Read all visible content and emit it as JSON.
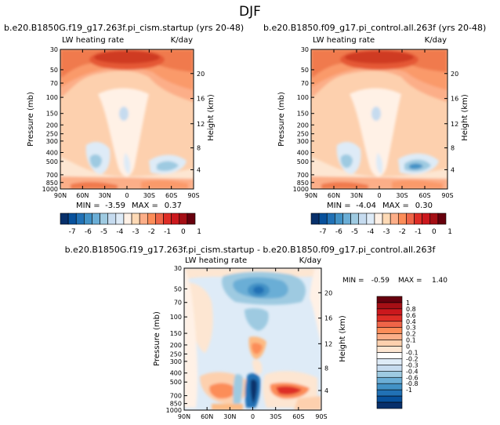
{
  "page_title": "DJF",
  "chart_data": [
    {
      "type": "heatmap",
      "title": "b.e20.B1850G.f19_g17.263f.pi_cism.startup (yrs 20-48)",
      "subtitle_left": "LW heating rate",
      "subtitle_right": "K/day",
      "ylabel": "Pressure (mb)",
      "ylabel_right": "Height (km)",
      "x_ticks": [
        "90N",
        "60N",
        "30N",
        "0",
        "30S",
        "60S",
        "90S"
      ],
      "y_ticks": [
        "30",
        "50",
        "70",
        "100",
        "150",
        "200",
        "250",
        "300",
        "400",
        "500",
        "700",
        "850",
        "1000"
      ],
      "height_ticks": [
        "20",
        "16",
        "12",
        "8",
        "4"
      ],
      "min_label": "MIN =",
      "min_value": "-3.59",
      "max_label": "MAX =",
      "max_value": "0.37",
      "colorbar_labels": [
        "-7",
        "-6",
        "-5",
        "-4",
        "-3",
        "-2",
        "-1",
        "0",
        "1"
      ]
    },
    {
      "type": "heatmap",
      "title": "b.e20.B1850.f09_g17.pi_control.all.263f (yrs 20-48)",
      "subtitle_left": "LW heating rate",
      "subtitle_right": "K/day",
      "ylabel": "Pressure (mb)",
      "ylabel_right": "Height (km)",
      "x_ticks": [
        "90N",
        "60N",
        "30N",
        "0",
        "30S",
        "60S",
        "90S"
      ],
      "y_ticks": [
        "30",
        "50",
        "70",
        "100",
        "150",
        "200",
        "250",
        "300",
        "400",
        "500",
        "700",
        "850",
        "1000"
      ],
      "height_ticks": [
        "20",
        "16",
        "12",
        "8",
        "4"
      ],
      "min_label": "MIN =",
      "min_value": "-4.04",
      "max_label": "MAX =",
      "max_value": "0.30",
      "colorbar_labels": [
        "-7",
        "-6",
        "-5",
        "-4",
        "-3",
        "-2",
        "-1",
        "0",
        "1"
      ]
    },
    {
      "type": "heatmap",
      "title": "b.e20.B1850G.f19_g17.263f.pi_cism.startup - b.e20.B1850.f09_g17.pi_control.all.263f",
      "subtitle_left": "LW heating rate",
      "subtitle_right": "K/day",
      "ylabel": "Pressure (mb)",
      "ylabel_right": "Height (km)",
      "x_ticks": [
        "90N",
        "60N",
        "30N",
        "0",
        "30S",
        "60S",
        "90S"
      ],
      "y_ticks": [
        "30",
        "50",
        "70",
        "100",
        "150",
        "200",
        "250",
        "300",
        "400",
        "500",
        "700",
        "850",
        "1000"
      ],
      "height_ticks": [
        "20",
        "16",
        "12",
        "8",
        "4"
      ],
      "min_label": "MIN =",
      "min_value": "-0.59",
      "max_label": "MAX =",
      "max_value": "1.40",
      "colorbar_labels": [
        "1",
        "0.8",
        "0.6",
        "0.4",
        "0.3",
        "0.2",
        "0.1",
        "0",
        "-0.1",
        "-0.2",
        "-0.3",
        "-0.4",
        "-0.6",
        "-0.8",
        "-1"
      ]
    }
  ],
  "colors": {
    "dark_red": "#a50f15",
    "red": "#de2d26",
    "orange_red": "#ef6548",
    "orange": "#fc8d59",
    "light_orange": "#fdbb84",
    "peach": "#fdd9b5",
    "cream": "#fff1e6",
    "pale_blue": "#deebf7",
    "light_blue": "#9ecae1",
    "blue": "#4292c6",
    "dark_blue": "#08306b"
  }
}
